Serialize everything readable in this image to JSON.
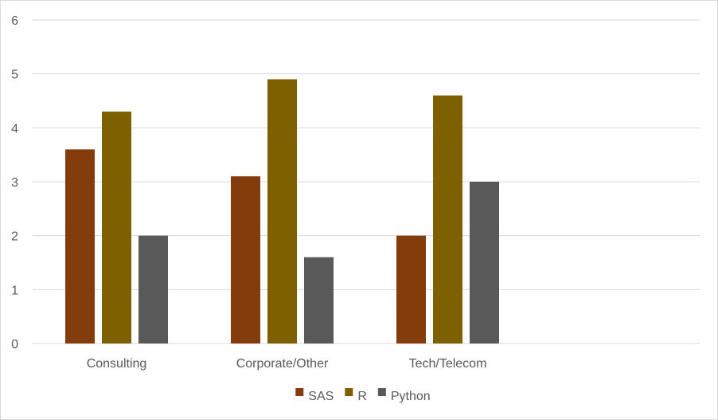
{
  "chart_data": {
    "type": "bar",
    "title": "",
    "xlabel": "",
    "ylabel": "",
    "categories": [
      "Consulting",
      "Corporate/Other",
      "Tech/Telecom"
    ],
    "series": [
      {
        "name": "SAS",
        "color": "#843c0c",
        "values": [
          3.6,
          3.1,
          2.0
        ]
      },
      {
        "name": "R",
        "color": "#7f6000",
        "values": [
          4.3,
          4.9,
          4.6
        ]
      },
      {
        "name": "Python",
        "color": "#595959",
        "values": [
          2.0,
          1.6,
          3.0
        ]
      }
    ],
    "ylim": [
      0,
      6
    ],
    "yticks": [
      0,
      1,
      2,
      3,
      4,
      5,
      6
    ],
    "grid": true,
    "gridColor": "#d9d9d9",
    "legend": "bottom"
  }
}
